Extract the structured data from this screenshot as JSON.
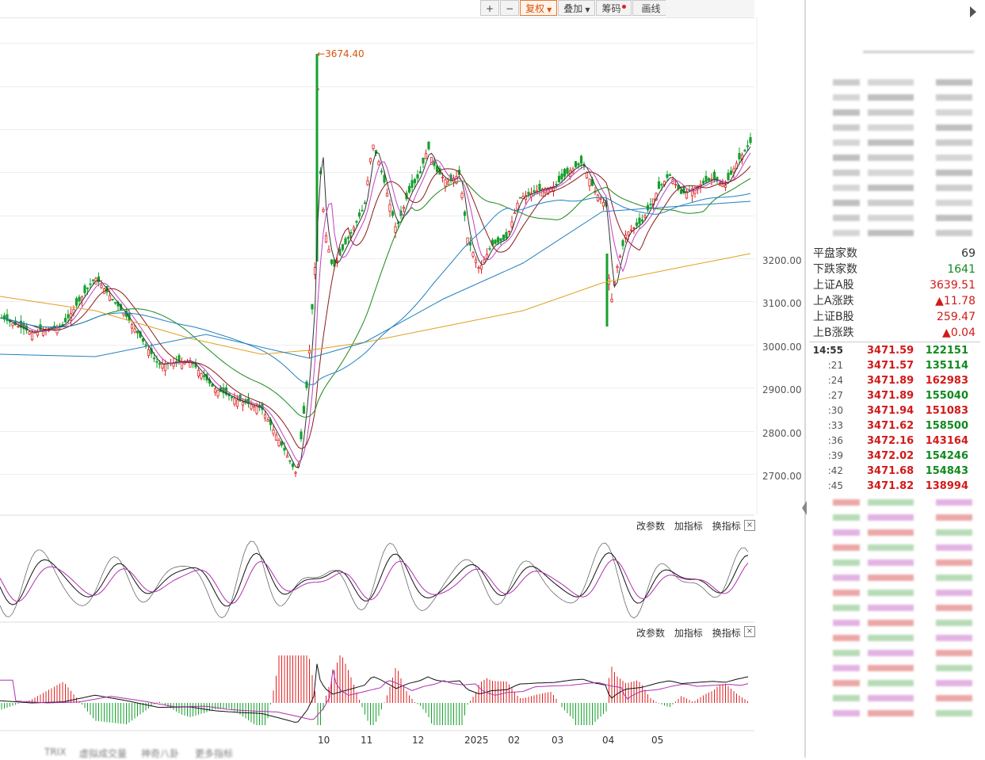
{
  "toolbar": {
    "zoom_in": "+",
    "zoom_out": "−",
    "fuquan": "复权",
    "diejia": "叠加",
    "chouma": "筹码",
    "huaxian": "画线"
  },
  "chart": {
    "peak_label": "3674.40",
    "y_ticks": [
      "3200.00",
      "3100.00",
      "3000.00",
      "2900.00",
      "2800.00",
      "2700.00"
    ],
    "months": [
      "10",
      "11",
      "12",
      "2025",
      "02",
      "03",
      "04",
      "05"
    ],
    "colors": {
      "up": "#e02020",
      "down": "#16a02e",
      "ma5": "#333333",
      "ma10": "#c040c0",
      "ma20": "#8a1a1a",
      "ma60": "#1a8a1a",
      "ma120": "#2080c0",
      "ma250": "#e0a020"
    }
  },
  "indicator1": {
    "modify": "改参数",
    "add": "加指标",
    "switch": "换指标",
    "close": "×"
  },
  "indicator2": {
    "modify": "改参数",
    "add": "加指标",
    "switch": "换指标",
    "close": "×"
  },
  "bottom_tabs": [
    "TRIX",
    "虚拟成交量",
    "神奇八卦",
    "更多指标"
  ],
  "panel": {
    "stats": [
      {
        "label": "平盘家数",
        "value": "69",
        "color": "#333333"
      },
      {
        "label": "下跌家数",
        "value": "1641",
        "color": "#0f8a1e"
      },
      {
        "label": "上证A股",
        "value": "3639.51",
        "color": "#d21a1a"
      },
      {
        "label": "上A涨跌",
        "value": "▲11.78",
        "color": "#d21a1a"
      },
      {
        "label": "上证B股",
        "value": "259.47",
        "color": "#d21a1a"
      },
      {
        "label": "上B涨跌",
        "value": "▲0.04",
        "color": "#d21a1a"
      }
    ],
    "trades": [
      {
        "time": "14:55",
        "price": "3471.59",
        "vol": "122151",
        "vol_color": "#0f8a1e"
      },
      {
        "time": ":21",
        "price": "3471.57",
        "vol": "135114",
        "vol_color": "#0f8a1e"
      },
      {
        "time": ":24",
        "price": "3471.89",
        "vol": "162983",
        "vol_color": "#d21a1a"
      },
      {
        "time": ":27",
        "price": "3471.89",
        "vol": "155040",
        "vol_color": "#0f8a1e"
      },
      {
        "time": ":30",
        "price": "3471.94",
        "vol": "151083",
        "vol_color": "#d21a1a"
      },
      {
        "time": ":33",
        "price": "3471.62",
        "vol": "158500",
        "vol_color": "#0f8a1e"
      },
      {
        "time": ":36",
        "price": "3472.16",
        "vol": "143164",
        "vol_color": "#d21a1a"
      },
      {
        "time": ":39",
        "price": "3472.02",
        "vol": "154246",
        "vol_color": "#0f8a1e"
      },
      {
        "time": ":42",
        "price": "3471.68",
        "vol": "154843",
        "vol_color": "#0f8a1e"
      },
      {
        "time": ":45",
        "price": "3471.82",
        "vol": "138994",
        "vol_color": "#d21a1a"
      }
    ]
  }
}
